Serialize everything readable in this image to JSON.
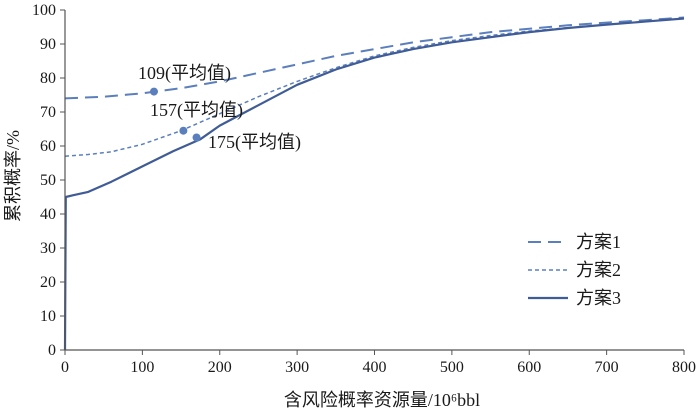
{
  "chart_data": {
    "type": "line",
    "xlabel": "含风险概率资源量/10⁶bbl",
    "ylabel": "累积概率/%",
    "xlim": [
      0,
      800
    ],
    "ylim": [
      0,
      100
    ],
    "xticks": [
      0,
      100,
      200,
      300,
      400,
      500,
      600,
      700,
      800
    ],
    "yticks": [
      0,
      10,
      20,
      30,
      40,
      50,
      60,
      70,
      80,
      90,
      100
    ],
    "xtick_labels": [
      "0",
      "100",
      "200",
      "300",
      "400",
      "500",
      "600",
      "700",
      "800"
    ],
    "ytick_labels": [
      "0",
      "10",
      "20",
      "30",
      "40",
      "50",
      "60",
      "70",
      "80",
      "90",
      "100"
    ],
    "grid": false,
    "legend_position": "bottom-right",
    "colors": {
      "series": "#5b7fbd",
      "series_dark": "#3f5c96"
    },
    "series": [
      {
        "name": "方案1",
        "style": "long-dash",
        "points": [
          [
            0,
            74
          ],
          [
            50,
            74.5
          ],
          [
            100,
            75.5
          ],
          [
            150,
            77
          ],
          [
            200,
            79
          ],
          [
            250,
            81.5
          ],
          [
            300,
            84
          ],
          [
            350,
            86.5
          ],
          [
            400,
            88.5
          ],
          [
            450,
            90.5
          ],
          [
            500,
            92
          ],
          [
            550,
            93.5
          ],
          [
            600,
            94.5
          ],
          [
            650,
            95.5
          ],
          [
            700,
            96.3
          ],
          [
            750,
            97
          ],
          [
            800,
            97.8
          ]
        ]
      },
      {
        "name": "方案2",
        "style": "short-dash",
        "points": [
          [
            0,
            57
          ],
          [
            30,
            57.5
          ],
          [
            60,
            58.3
          ],
          [
            100,
            60.5
          ],
          [
            150,
            64.5
          ],
          [
            200,
            69.5
          ],
          [
            250,
            74.5
          ],
          [
            300,
            79
          ],
          [
            350,
            83
          ],
          [
            400,
            86.5
          ],
          [
            450,
            89
          ],
          [
            500,
            91
          ],
          [
            550,
            92.5
          ],
          [
            600,
            93.8
          ],
          [
            650,
            94.8
          ],
          [
            700,
            95.7
          ],
          [
            750,
            96.6
          ],
          [
            800,
            97.5
          ]
        ]
      },
      {
        "name": "方案3",
        "style": "solid",
        "points": [
          [
            0,
            0
          ],
          [
            1,
            45
          ],
          [
            10,
            45.5
          ],
          [
            30,
            46.5
          ],
          [
            60,
            49.5
          ],
          [
            100,
            54
          ],
          [
            140,
            58.5
          ],
          [
            175,
            62
          ],
          [
            200,
            66
          ],
          [
            250,
            72
          ],
          [
            300,
            78
          ],
          [
            350,
            82.5
          ],
          [
            400,
            86
          ],
          [
            450,
            88.5
          ],
          [
            500,
            90.5
          ],
          [
            550,
            92
          ],
          [
            600,
            93.5
          ],
          [
            650,
            94.7
          ],
          [
            700,
            95.7
          ],
          [
            750,
            96.6
          ],
          [
            800,
            97.5
          ]
        ]
      }
    ],
    "markers": [
      {
        "series": 0,
        "x": 115,
        "y": 76
      },
      {
        "series": 1,
        "x": 153,
        "y": 64.5
      },
      {
        "series": 2,
        "x": 170,
        "y": 62.5
      }
    ],
    "annotations": [
      {
        "text": "109(平均值)"
      },
      {
        "text": "157(平均值)"
      },
      {
        "text": "175(平均值)"
      }
    ]
  }
}
